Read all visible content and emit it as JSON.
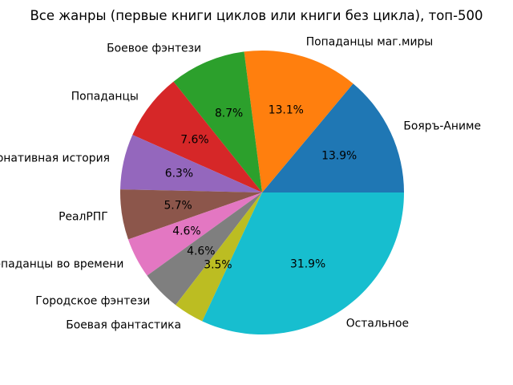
{
  "figure": {
    "background_color": "#ffffff",
    "text_color": "#000000"
  },
  "chart_data": {
    "type": "pie",
    "title": "Все жанры (первые книги циклов или книги без цикла), топ-500",
    "start_angle": 0,
    "direction": "counterclockwise",
    "label_distance": 1.1,
    "pct_distance": 0.6,
    "legend": "none",
    "slices": [
      {
        "label": "Бояръ-Аниме",
        "value": 13.9,
        "pct_label": "13.9%",
        "color": "#1f77b4"
      },
      {
        "label": "Попаданцы маг.миры",
        "value": 13.1,
        "pct_label": "13.1%",
        "color": "#ff7f0e"
      },
      {
        "label": "Боевое фэнтези",
        "value": 8.7,
        "pct_label": "8.7%",
        "color": "#2ca02c"
      },
      {
        "label": "Попаданцы",
        "value": 7.6,
        "pct_label": "7.6%",
        "color": "#d62728"
      },
      {
        "label": "Альтернативная история",
        "value": 6.3,
        "pct_label": "6.3%",
        "color": "#9467bd"
      },
      {
        "label": "РеалРПГ",
        "value": 5.7,
        "pct_label": "5.7%",
        "color": "#8c564b"
      },
      {
        "label": "Попаданцы во времени",
        "value": 4.6,
        "pct_label": "4.6%",
        "color": "#e377c2"
      },
      {
        "label": "Городское фэнтези",
        "value": 4.6,
        "pct_label": "4.6%",
        "color": "#7f7f7f"
      },
      {
        "label": "Боевая фантастика",
        "value": 3.5,
        "pct_label": "3.5%",
        "color": "#bcbd22"
      },
      {
        "label": "Остальное",
        "value": 31.9,
        "pct_label": "31.9%",
        "color": "#17becf"
      }
    ]
  }
}
